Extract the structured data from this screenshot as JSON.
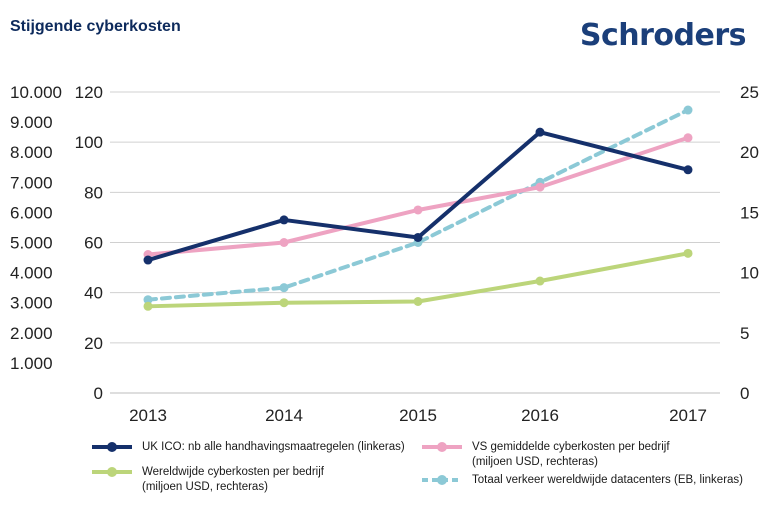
{
  "header": {
    "title": "Stijgende cyberkosten",
    "brand": "Schroders"
  },
  "colors": {
    "uk_ico": "#15306b",
    "us_cost": "#eea3c2",
    "world_cost": "#bcd57a",
    "traffic": "#8cc9d6",
    "grid": "#d0d0d0"
  },
  "chart_data": {
    "type": "line",
    "title": "Stijgende cyberkosten",
    "categories": [
      "2013",
      "2014",
      "2015",
      "2016",
      "2017"
    ],
    "axes": {
      "left_inner": {
        "range": [
          0,
          120
        ],
        "ticks": [
          "0",
          "20",
          "40",
          "60",
          "80",
          "100",
          "120"
        ]
      },
      "left_outer": {
        "range": [
          0,
          10000
        ],
        "ticks": [
          "1.000",
          "2.000",
          "3.000",
          "4.000",
          "5.000",
          "6.000",
          "7.000",
          "8.000",
          "9.000",
          "10.000"
        ]
      },
      "right": {
        "range": [
          0,
          25
        ],
        "ticks": [
          "0",
          "5",
          "10",
          "15",
          "20",
          "25"
        ]
      }
    },
    "grid": true,
    "legend_position": "bottom",
    "series": [
      {
        "name": "UK ICO: nb alle handhavingsmaatregelen (linkeras)",
        "axis": "left_inner",
        "style": "solid-marker",
        "color_key": "uk_ico",
        "values": [
          53,
          69,
          62,
          104,
          89
        ]
      },
      {
        "name": "VS gemiddelde cyberkosten per bedrijf",
        "name_line2": "(miljoen USD, rechteras)",
        "axis": "right",
        "style": "solid-marker",
        "color_key": "us_cost",
        "values": [
          11.5,
          12.5,
          15.2,
          17.1,
          21.2
        ]
      },
      {
        "name": "Wereldwijde cyberkosten per bedrijf",
        "name_line2": "(miljoen USD, rechteras)",
        "axis": "right",
        "style": "solid-marker",
        "color_key": "world_cost",
        "values": [
          7.2,
          7.5,
          7.6,
          9.3,
          11.6
        ]
      },
      {
        "name": "Totaal verkeer wereldwijde datacenters (EB, linkeras)",
        "axis": "left_outer",
        "style": "dashed-marker",
        "color_key": "traffic",
        "values": [
          3100,
          3500,
          5000,
          7000,
          9400
        ]
      }
    ]
  }
}
